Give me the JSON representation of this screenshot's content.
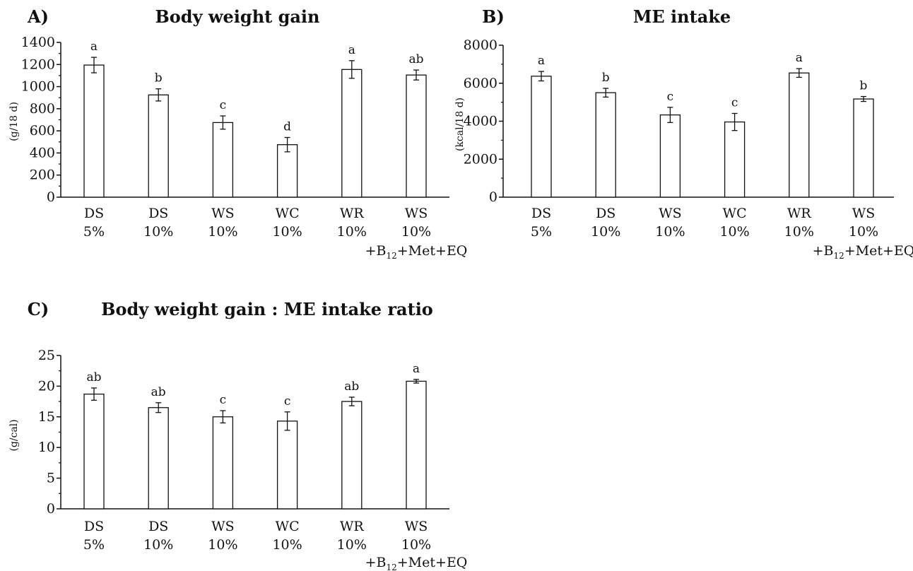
{
  "chart_data": [
    {
      "type": "bar",
      "panel": "A)",
      "title": "Body weight gain",
      "ylabel": "(g/18 d)",
      "ylim": [
        0,
        1400
      ],
      "yticks": [
        "0",
        "200",
        "400",
        "600",
        "800",
        "1000",
        "1200",
        "1400"
      ],
      "categories": [
        [
          "DS",
          "5%"
        ],
        [
          "DS",
          "10%"
        ],
        [
          "WS",
          "10%"
        ],
        [
          "WC",
          "10%"
        ],
        [
          "WR",
          "10%"
        ],
        [
          "WS",
          "10%"
        ]
      ],
      "extra_label": {
        "prefix": "+B",
        "sub": "12",
        "suffix": "+Met+EQ"
      },
      "values": [
        1195,
        925,
        675,
        475,
        1155,
        1105
      ],
      "errors": [
        70,
        55,
        60,
        65,
        80,
        45
      ],
      "sig_letters": [
        "a",
        "b",
        "c",
        "d",
        "a",
        "ab"
      ]
    },
    {
      "type": "bar",
      "panel": "B)",
      "title": "ME intake",
      "ylabel": "(kcal/18 d)",
      "ylim": [
        0,
        8000
      ],
      "yticks": [
        "0",
        "2000",
        "4000",
        "6000",
        "8000"
      ],
      "categories": [
        [
          "DS",
          "5%"
        ],
        [
          "DS",
          "10%"
        ],
        [
          "WS",
          "10%"
        ],
        [
          "WC",
          "10%"
        ],
        [
          "WR",
          "10%"
        ],
        [
          "WS",
          "10%"
        ]
      ],
      "extra_label": {
        "prefix": "+B",
        "sub": "12",
        "suffix": "+Met+EQ"
      },
      "values": [
        6370,
        5500,
        4330,
        3960,
        6540,
        5170
      ],
      "errors": [
        250,
        230,
        400,
        450,
        230,
        130
      ],
      "sig_letters": [
        "a",
        "b",
        "c",
        "c",
        "a",
        "b"
      ]
    },
    {
      "type": "bar",
      "panel": "C)",
      "title": "Body weight gain : ME intake ratio",
      "ylabel": "(g/cal)",
      "ylim": [
        0,
        25
      ],
      "yticks": [
        "0",
        "5",
        "10",
        "15",
        "20",
        "25"
      ],
      "categories": [
        [
          "DS",
          "5%"
        ],
        [
          "DS",
          "10%"
        ],
        [
          "WS",
          "10%"
        ],
        [
          "WC",
          "10%"
        ],
        [
          "WR",
          "10%"
        ],
        [
          "WS",
          "10%"
        ]
      ],
      "extra_label": {
        "prefix": "+B",
        "sub": "12",
        "suffix": "+Met+EQ"
      },
      "values": [
        18.7,
        16.5,
        15.0,
        14.3,
        17.5,
        20.8
      ],
      "errors": [
        1.0,
        0.8,
        1.0,
        1.5,
        0.7,
        0.3
      ],
      "sig_letters": [
        "ab",
        "ab",
        "c",
        "c",
        "ab",
        "a"
      ]
    }
  ]
}
